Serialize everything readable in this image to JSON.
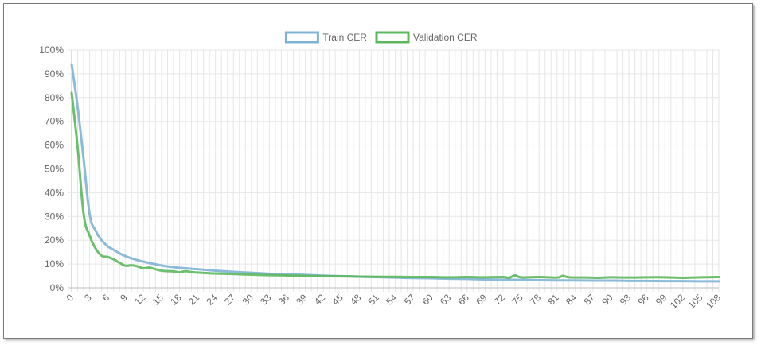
{
  "chart_data": {
    "type": "line",
    "title": "",
    "xlabel": "",
    "ylabel": "",
    "legend_position": "top",
    "grid": true,
    "x_range": [
      0,
      108
    ],
    "ylim": [
      0,
      100
    ],
    "y_ticks": [
      "0%",
      "10%",
      "20%",
      "30%",
      "40%",
      "50%",
      "60%",
      "70%",
      "80%",
      "90%",
      "100%"
    ],
    "x_tick_labels": [
      "0",
      "3",
      "6",
      "9",
      "12",
      "15",
      "18",
      "21",
      "24",
      "27",
      "30",
      "33",
      "36",
      "39",
      "42",
      "45",
      "48",
      "51",
      "54",
      "57",
      "60",
      "63",
      "66",
      "69",
      "72",
      "75",
      "78",
      "81",
      "84",
      "87",
      "90",
      "93",
      "96",
      "99",
      "102",
      "105",
      "108"
    ],
    "series": [
      {
        "name": "Train CER",
        "color": "#7fb3d5",
        "points": [
          [
            0,
            94
          ],
          [
            1,
            76
          ],
          [
            2,
            54
          ],
          [
            3,
            31
          ],
          [
            4,
            24
          ],
          [
            5,
            20
          ],
          [
            6,
            17.5
          ],
          [
            7,
            16
          ],
          [
            8,
            14.5
          ],
          [
            9,
            13.3
          ],
          [
            10,
            12.4
          ],
          [
            11,
            11.6
          ],
          [
            12,
            11
          ],
          [
            13,
            10.4
          ],
          [
            14,
            9.9
          ],
          [
            15,
            9.4
          ],
          [
            16,
            9
          ],
          [
            18,
            8.4
          ],
          [
            20,
            8
          ],
          [
            22,
            7.6
          ],
          [
            24,
            7.2
          ],
          [
            27,
            6.7
          ],
          [
            30,
            6.3
          ],
          [
            33,
            5.9
          ],
          [
            36,
            5.6
          ],
          [
            39,
            5.4
          ],
          [
            42,
            5.1
          ],
          [
            45,
            4.9
          ],
          [
            48,
            4.7
          ],
          [
            51,
            4.5
          ],
          [
            54,
            4.3
          ],
          [
            57,
            4.1
          ],
          [
            60,
            4
          ],
          [
            63,
            3.8
          ],
          [
            66,
            3.7
          ],
          [
            69,
            3.5
          ],
          [
            72,
            3.4
          ],
          [
            75,
            3.3
          ],
          [
            78,
            3.2
          ],
          [
            81,
            3.1
          ],
          [
            84,
            3.1
          ],
          [
            87,
            3
          ],
          [
            90,
            3
          ],
          [
            93,
            2.9
          ],
          [
            96,
            2.9
          ],
          [
            99,
            2.8
          ],
          [
            102,
            2.8
          ],
          [
            105,
            2.7
          ],
          [
            108,
            2.7
          ]
        ]
      },
      {
        "name": "Validation CER",
        "color": "#5cb85c",
        "points": [
          [
            0,
            82
          ],
          [
            1,
            59
          ],
          [
            2,
            31
          ],
          [
            3,
            22
          ],
          [
            4,
            16.5
          ],
          [
            5,
            13.5
          ],
          [
            6,
            13
          ],
          [
            7,
            12
          ],
          [
            8,
            10.5
          ],
          [
            9,
            9.3
          ],
          [
            10,
            9.5
          ],
          [
            11,
            9
          ],
          [
            12,
            8.2
          ],
          [
            13,
            8.5
          ],
          [
            14,
            7.8
          ],
          [
            15,
            7.2
          ],
          [
            16,
            7
          ],
          [
            17,
            6.9
          ],
          [
            18,
            6.5
          ],
          [
            19,
            7
          ],
          [
            20,
            6.6
          ],
          [
            21,
            6.4
          ],
          [
            24,
            6
          ],
          [
            27,
            5.8
          ],
          [
            30,
            5.5
          ],
          [
            33,
            5.3
          ],
          [
            36,
            5.2
          ],
          [
            39,
            5
          ],
          [
            42,
            4.9
          ],
          [
            45,
            4.8
          ],
          [
            48,
            4.7
          ],
          [
            51,
            4.6
          ],
          [
            54,
            4.6
          ],
          [
            57,
            4.5
          ],
          [
            60,
            4.5
          ],
          [
            63,
            4.4
          ],
          [
            66,
            4.5
          ],
          [
            69,
            4.4
          ],
          [
            72,
            4.5
          ],
          [
            73,
            4.2
          ],
          [
            74,
            5.2
          ],
          [
            75,
            4.4
          ],
          [
            78,
            4.5
          ],
          [
            81,
            4.3
          ],
          [
            82,
            5
          ],
          [
            83,
            4.4
          ],
          [
            86,
            4.3
          ],
          [
            88,
            4.2
          ],
          [
            90,
            4.4
          ],
          [
            93,
            4.3
          ],
          [
            96,
            4.4
          ],
          [
            99,
            4.4
          ],
          [
            102,
            4.2
          ],
          [
            105,
            4.4
          ],
          [
            108,
            4.5
          ]
        ]
      }
    ]
  }
}
